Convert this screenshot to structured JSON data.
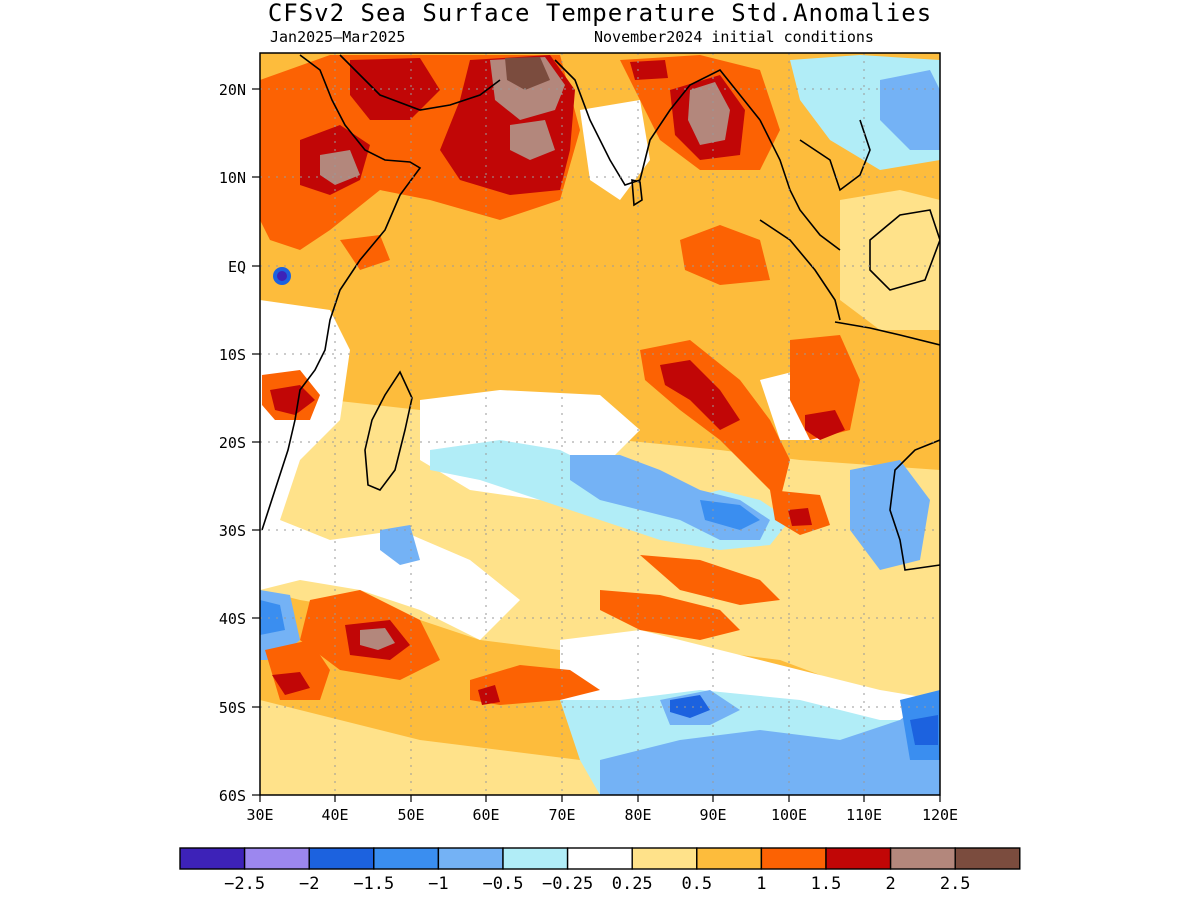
{
  "title": "CFSv2 Sea Surface Temperature Std.Anomalies",
  "subtitle_left": "Jan2025–Mar2025",
  "subtitle_right": "November2024 initial conditions",
  "map": {
    "lon_range": [
      30,
      120
    ],
    "lat_range": [
      -60,
      24
    ],
    "x_ticks": [
      "30E",
      "40E",
      "50E",
      "60E",
      "70E",
      "80E",
      "90E",
      "100E",
      "110E",
      "120E"
    ],
    "y_ticks": [
      "20N",
      "10N",
      "EQ",
      "10S",
      "20S",
      "30S",
      "40S",
      "50S",
      "60S"
    ],
    "grid": "dotted",
    "background_anomaly_class": "0.5 to 1",
    "colors": {
      "below_-2.5": "#3d22b8",
      "-2.5_-2": "#9c87ef",
      "-2_-1.5": "#1c62df",
      "-1.5_-1": "#3a8ef0",
      "-1_-0.5": "#74b2f5",
      "-0.5_-0.25": "#b1edf7",
      "-0.25_0.25": "#ffffff",
      "0.25_0.5": "#ffe28a",
      "0.5_1": "#fdbc3c",
      "1_1.5": "#fc6203",
      "1.5_2": "#c10606",
      "2_2.5": "#b3877c",
      "above_2.5": "#7b4c3e"
    }
  },
  "colorbar": {
    "colors": [
      "#3d22b8",
      "#9c87ef",
      "#1c62df",
      "#3a8ef0",
      "#74b2f5",
      "#b1edf7",
      "#ffffff",
      "#ffe28a",
      "#fdbc3c",
      "#fc6203",
      "#c10606",
      "#b3877c",
      "#7b4c3e"
    ],
    "labels": [
      "−2.5",
      "−2",
      "−1.5",
      "−1",
      "−0.5",
      "−0.25",
      "0.25",
      "0.5",
      "1",
      "1.5",
      "2",
      "2.5"
    ]
  }
}
